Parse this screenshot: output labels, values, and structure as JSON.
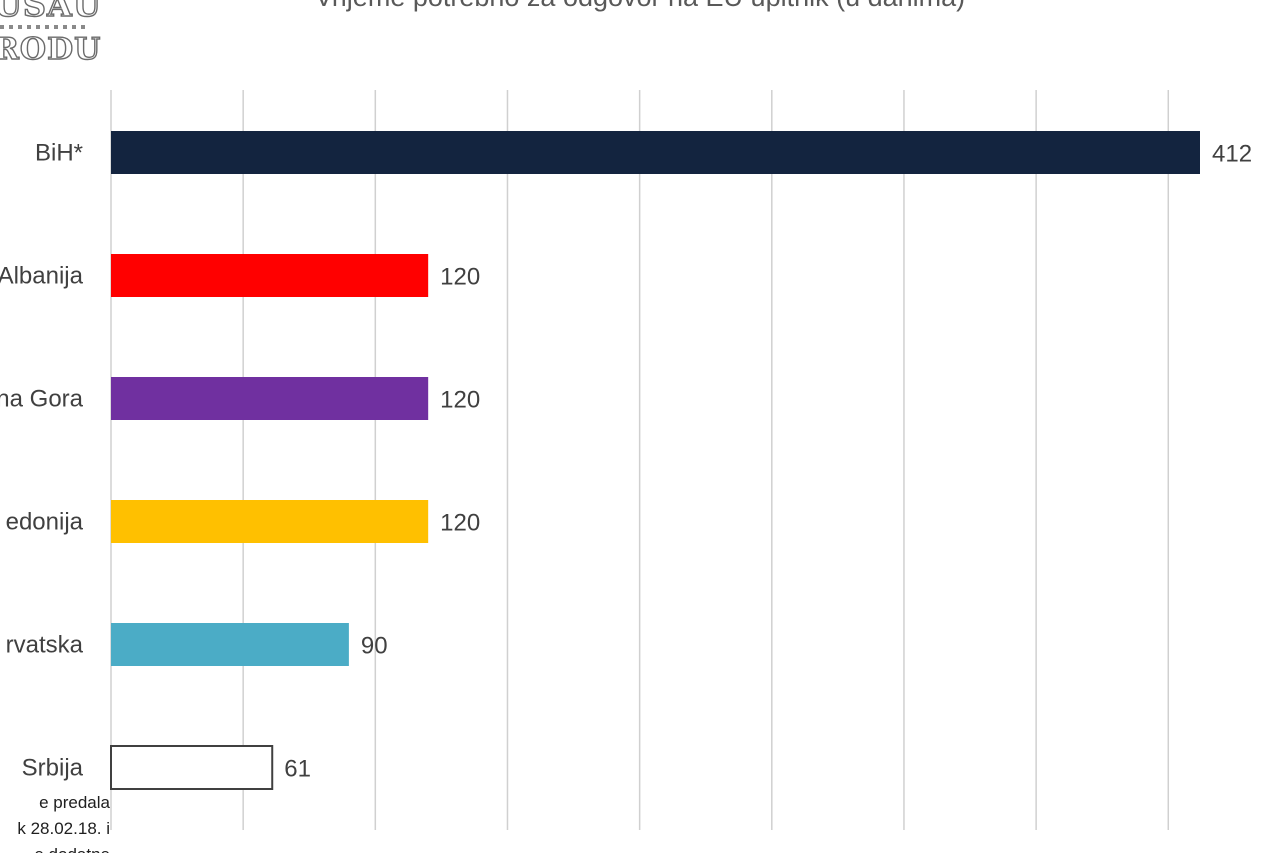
{
  "logo": {
    "line1": "USAU",
    "line2": "RODU"
  },
  "colors": {
    "grid": "#d0d0d0",
    "bar_outline": "#404040"
  },
  "chart_data": {
    "type": "bar",
    "orientation": "horizontal",
    "title": "Vrijeme potrebno za odgovor na EU upitnik (u danima)",
    "categories": [
      "BiH*",
      "Albanija",
      "na Gora",
      "edonija",
      "rvatska",
      "Srbija"
    ],
    "values": [
      412,
      120,
      120,
      120,
      90,
      61
    ],
    "bar_colors": [
      "#13243f",
      "#ff0000",
      "#7030a0",
      "#ffc000",
      "#4bacc6",
      "#ffffff"
    ],
    "data_labels": [
      "412",
      "120",
      "120",
      "120",
      "90",
      "61"
    ],
    "xlim": [
      0,
      450
    ],
    "grid": true,
    "legend": "none"
  },
  "footnote": {
    "line1": "e predala",
    "line2": "k 28.02.18. i",
    "line3": "e dodatne"
  }
}
